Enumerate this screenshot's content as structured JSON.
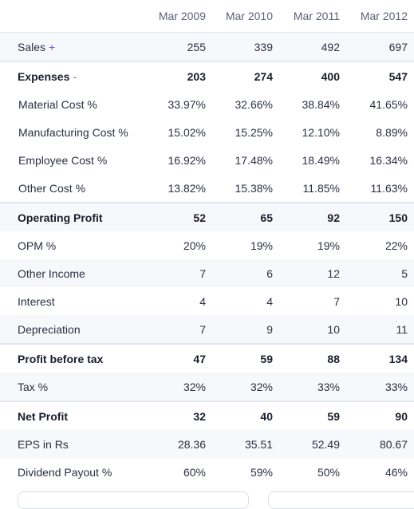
{
  "columns": [
    "Mar 2009",
    "Mar 2010",
    "Mar 2011",
    "Mar 2012"
  ],
  "rows": [
    {
      "label": "Sales",
      "toggle": "+",
      "values": [
        "255",
        "339",
        "492",
        "697"
      ]
    },
    {
      "label": "Expenses",
      "toggle": "-",
      "values": [
        "203",
        "274",
        "400",
        "547"
      ]
    },
    {
      "label": "Material Cost %",
      "toggle": "",
      "values": [
        "33.97%",
        "32.66%",
        "38.84%",
        "41.65%"
      ]
    },
    {
      "label": "Manufacturing Cost %",
      "toggle": "",
      "values": [
        "15.02%",
        "15.25%",
        "12.10%",
        "8.89%"
      ]
    },
    {
      "label": "Employee Cost %",
      "toggle": "",
      "values": [
        "16.92%",
        "17.48%",
        "18.49%",
        "16.34%"
      ]
    },
    {
      "label": "Other Cost %",
      "toggle": "",
      "values": [
        "13.82%",
        "15.38%",
        "11.85%",
        "11.63%"
      ]
    },
    {
      "label": "Operating Profit",
      "toggle": "",
      "values": [
        "52",
        "65",
        "92",
        "150"
      ]
    },
    {
      "label": "OPM %",
      "toggle": "",
      "values": [
        "20%",
        "19%",
        "19%",
        "22%"
      ]
    },
    {
      "label": "Other Income",
      "toggle": "",
      "values": [
        "7",
        "6",
        "12",
        "5"
      ]
    },
    {
      "label": "Interest",
      "toggle": "",
      "values": [
        "4",
        "4",
        "7",
        "10"
      ]
    },
    {
      "label": "Depreciation",
      "toggle": "",
      "values": [
        "7",
        "9",
        "10",
        "11"
      ]
    },
    {
      "label": "Profit before tax",
      "toggle": "",
      "values": [
        "47",
        "59",
        "88",
        "134"
      ]
    },
    {
      "label": "Tax %",
      "toggle": "",
      "values": [
        "32%",
        "32%",
        "33%",
        "33%"
      ]
    },
    {
      "label": "Net Profit",
      "toggle": "",
      "values": [
        "32",
        "40",
        "59",
        "90"
      ]
    },
    {
      "label": "EPS in Rs",
      "toggle": "",
      "values": [
        "28.36",
        "35.51",
        "52.49",
        "80.67"
      ]
    },
    {
      "label": "Dividend Payout %",
      "toggle": "",
      "values": [
        "60%",
        "59%",
        "50%",
        "46%"
      ]
    }
  ]
}
